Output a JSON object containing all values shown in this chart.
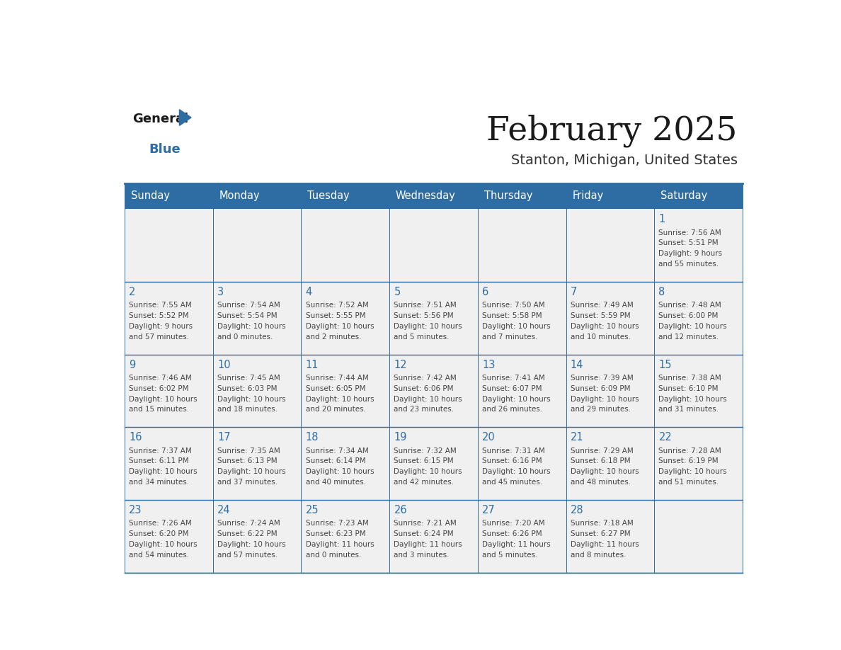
{
  "title": "February 2025",
  "subtitle": "Stanton, Michigan, United States",
  "days_of_week": [
    "Sunday",
    "Monday",
    "Tuesday",
    "Wednesday",
    "Thursday",
    "Friday",
    "Saturday"
  ],
  "header_bg_color": "#2e6da4",
  "header_text_color": "#ffffff",
  "cell_bg_color": "#f0f0f0",
  "day_number_color": "#2e6da4",
  "text_color": "#444444",
  "border_color": "#2e6da4",
  "line_color": "#2e6da4",
  "calendar_data": [
    [
      null,
      null,
      null,
      null,
      null,
      null,
      {
        "day": "1",
        "sunrise": "7:56 AM",
        "sunset": "5:51 PM",
        "daylight_h": "9 hours",
        "daylight_m": "and 55 minutes."
      }
    ],
    [
      {
        "day": "2",
        "sunrise": "7:55 AM",
        "sunset": "5:52 PM",
        "daylight_h": "9 hours",
        "daylight_m": "and 57 minutes."
      },
      {
        "day": "3",
        "sunrise": "7:54 AM",
        "sunset": "5:54 PM",
        "daylight_h": "10 hours",
        "daylight_m": "and 0 minutes."
      },
      {
        "day": "4",
        "sunrise": "7:52 AM",
        "sunset": "5:55 PM",
        "daylight_h": "10 hours",
        "daylight_m": "and 2 minutes."
      },
      {
        "day": "5",
        "sunrise": "7:51 AM",
        "sunset": "5:56 PM",
        "daylight_h": "10 hours",
        "daylight_m": "and 5 minutes."
      },
      {
        "day": "6",
        "sunrise": "7:50 AM",
        "sunset": "5:58 PM",
        "daylight_h": "10 hours",
        "daylight_m": "and 7 minutes."
      },
      {
        "day": "7",
        "sunrise": "7:49 AM",
        "sunset": "5:59 PM",
        "daylight_h": "10 hours",
        "daylight_m": "and 10 minutes."
      },
      {
        "day": "8",
        "sunrise": "7:48 AM",
        "sunset": "6:00 PM",
        "daylight_h": "10 hours",
        "daylight_m": "and 12 minutes."
      }
    ],
    [
      {
        "day": "9",
        "sunrise": "7:46 AM",
        "sunset": "6:02 PM",
        "daylight_h": "10 hours",
        "daylight_m": "and 15 minutes."
      },
      {
        "day": "10",
        "sunrise": "7:45 AM",
        "sunset": "6:03 PM",
        "daylight_h": "10 hours",
        "daylight_m": "and 18 minutes."
      },
      {
        "day": "11",
        "sunrise": "7:44 AM",
        "sunset": "6:05 PM",
        "daylight_h": "10 hours",
        "daylight_m": "and 20 minutes."
      },
      {
        "day": "12",
        "sunrise": "7:42 AM",
        "sunset": "6:06 PM",
        "daylight_h": "10 hours",
        "daylight_m": "and 23 minutes."
      },
      {
        "day": "13",
        "sunrise": "7:41 AM",
        "sunset": "6:07 PM",
        "daylight_h": "10 hours",
        "daylight_m": "and 26 minutes."
      },
      {
        "day": "14",
        "sunrise": "7:39 AM",
        "sunset": "6:09 PM",
        "daylight_h": "10 hours",
        "daylight_m": "and 29 minutes."
      },
      {
        "day": "15",
        "sunrise": "7:38 AM",
        "sunset": "6:10 PM",
        "daylight_h": "10 hours",
        "daylight_m": "and 31 minutes."
      }
    ],
    [
      {
        "day": "16",
        "sunrise": "7:37 AM",
        "sunset": "6:11 PM",
        "daylight_h": "10 hours",
        "daylight_m": "and 34 minutes."
      },
      {
        "day": "17",
        "sunrise": "7:35 AM",
        "sunset": "6:13 PM",
        "daylight_h": "10 hours",
        "daylight_m": "and 37 minutes."
      },
      {
        "day": "18",
        "sunrise": "7:34 AM",
        "sunset": "6:14 PM",
        "daylight_h": "10 hours",
        "daylight_m": "and 40 minutes."
      },
      {
        "day": "19",
        "sunrise": "7:32 AM",
        "sunset": "6:15 PM",
        "daylight_h": "10 hours",
        "daylight_m": "and 42 minutes."
      },
      {
        "day": "20",
        "sunrise": "7:31 AM",
        "sunset": "6:16 PM",
        "daylight_h": "10 hours",
        "daylight_m": "and 45 minutes."
      },
      {
        "day": "21",
        "sunrise": "7:29 AM",
        "sunset": "6:18 PM",
        "daylight_h": "10 hours",
        "daylight_m": "and 48 minutes."
      },
      {
        "day": "22",
        "sunrise": "7:28 AM",
        "sunset": "6:19 PM",
        "daylight_h": "10 hours",
        "daylight_m": "and 51 minutes."
      }
    ],
    [
      {
        "day": "23",
        "sunrise": "7:26 AM",
        "sunset": "6:20 PM",
        "daylight_h": "10 hours",
        "daylight_m": "and 54 minutes."
      },
      {
        "day": "24",
        "sunrise": "7:24 AM",
        "sunset": "6:22 PM",
        "daylight_h": "10 hours",
        "daylight_m": "and 57 minutes."
      },
      {
        "day": "25",
        "sunrise": "7:23 AM",
        "sunset": "6:23 PM",
        "daylight_h": "11 hours",
        "daylight_m": "and 0 minutes."
      },
      {
        "day": "26",
        "sunrise": "7:21 AM",
        "sunset": "6:24 PM",
        "daylight_h": "11 hours",
        "daylight_m": "and 3 minutes."
      },
      {
        "day": "27",
        "sunrise": "7:20 AM",
        "sunset": "6:26 PM",
        "daylight_h": "11 hours",
        "daylight_m": "and 5 minutes."
      },
      {
        "day": "28",
        "sunrise": "7:18 AM",
        "sunset": "6:27 PM",
        "daylight_h": "11 hours",
        "daylight_m": "and 8 minutes."
      },
      null
    ]
  ]
}
